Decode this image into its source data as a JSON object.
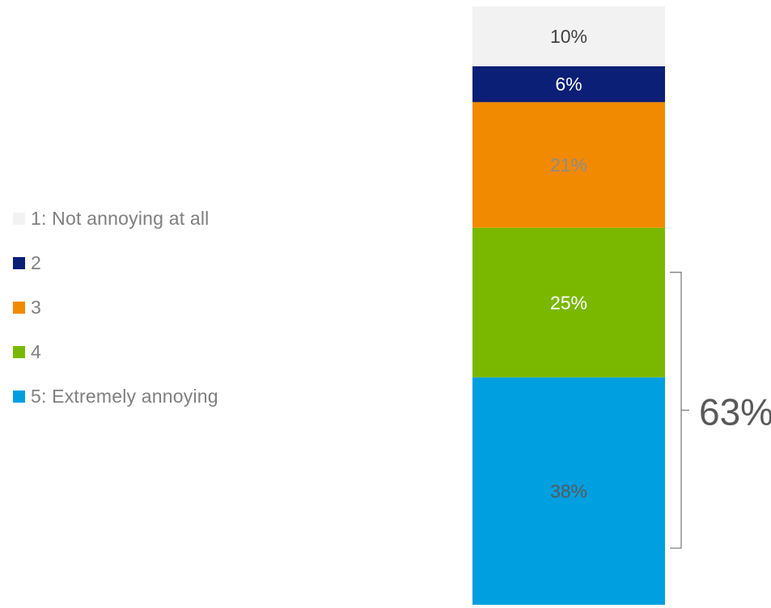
{
  "chart_data": {
    "type": "bar",
    "stacked": true,
    "categories": [
      ""
    ],
    "series": [
      {
        "name": "1: Not annoying at all",
        "values": [
          10
        ],
        "color": "#f2f2f2",
        "label_color": "#404040"
      },
      {
        "name": "2",
        "values": [
          6
        ],
        "color": "#0a1f75",
        "label_color": "#ffffff"
      },
      {
        "name": "3",
        "values": [
          21
        ],
        "color": "#f28a00",
        "label_color": "#8c8c8c"
      },
      {
        "name": "4",
        "values": [
          25
        ],
        "color": "#7ab800",
        "label_color": "#ffffff"
      },
      {
        "name": "5: Extremely annoying",
        "values": [
          38
        ],
        "color": "#009fe0",
        "label_color": "#595959"
      }
    ],
    "data_labels": [
      "10%",
      "6%",
      "21%",
      "25%",
      "38%"
    ],
    "legend_position": "left",
    "annotation": {
      "text": "63%",
      "spans_series": [
        "4",
        "5: Extremely annoying"
      ]
    },
    "ylim": [
      0,
      100
    ]
  }
}
